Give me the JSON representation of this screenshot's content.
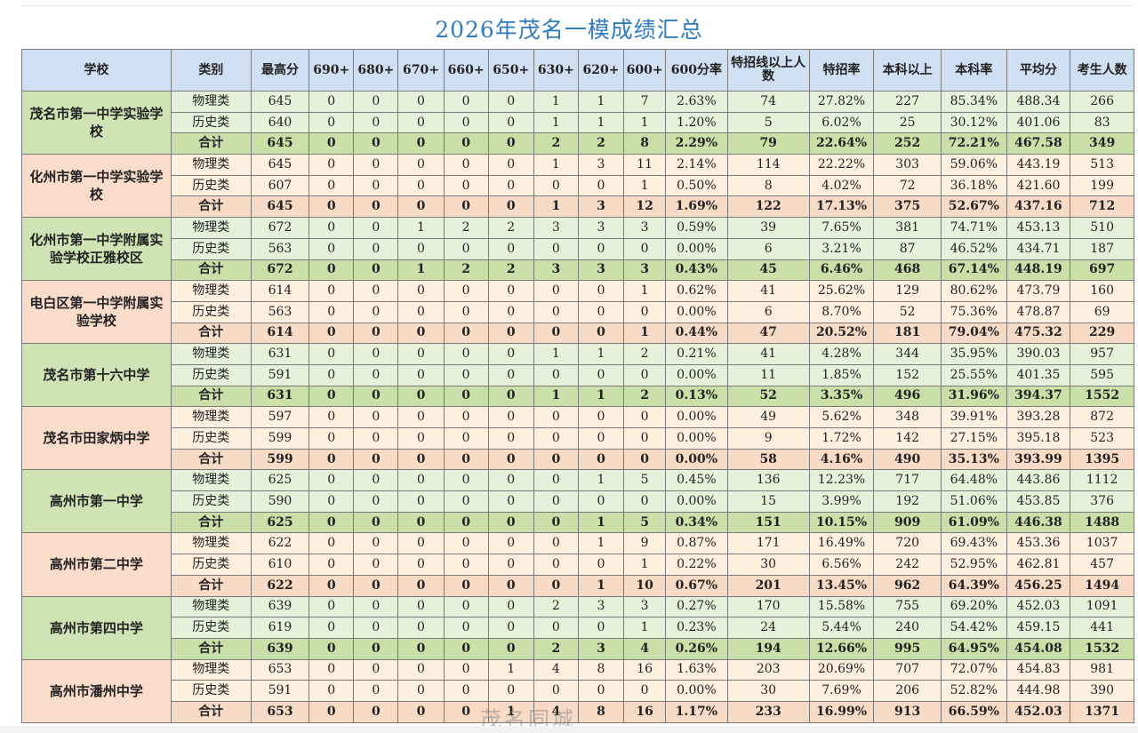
{
  "title": "2026年茂名一模成绩汇总",
  "watermark": "茂名同城",
  "headers": [
    "学校",
    "类别",
    "最高分",
    "690+",
    "680+",
    "670+",
    "660+",
    "650+",
    "630+",
    "620+",
    "600+",
    "600分率",
    "特招线以上人数",
    "特招率",
    "本科以上",
    "本科率",
    "平均分",
    "考生人数"
  ],
  "schools": [
    {
      "name": "茂名市第一中学实验学校",
      "color": "g",
      "rows": [
        [
          "物理类",
          "645",
          "0",
          "0",
          "0",
          "0",
          "0",
          "1",
          "1",
          "7",
          "2.63%",
          "74",
          "27.82%",
          "227",
          "85.34%",
          "488.34",
          "266"
        ],
        [
          "历史类",
          "640",
          "0",
          "0",
          "0",
          "0",
          "0",
          "1",
          "1",
          "1",
          "1.20%",
          "5",
          "6.02%",
          "25",
          "30.12%",
          "401.06",
          "83"
        ],
        [
          "合计",
          "645",
          "0",
          "0",
          "0",
          "0",
          "0",
          "2",
          "2",
          "8",
          "2.29%",
          "79",
          "22.64%",
          "252",
          "72.21%",
          "467.58",
          "349"
        ]
      ]
    },
    {
      "name": "化州市第一中学实验学校",
      "color": "o",
      "rows": [
        [
          "物理类",
          "645",
          "0",
          "0",
          "0",
          "0",
          "0",
          "1",
          "3",
          "11",
          "2.14%",
          "114",
          "22.22%",
          "303",
          "59.06%",
          "443.19",
          "513"
        ],
        [
          "历史类",
          "607",
          "0",
          "0",
          "0",
          "0",
          "0",
          "0",
          "0",
          "1",
          "0.50%",
          "8",
          "4.02%",
          "72",
          "36.18%",
          "421.60",
          "199"
        ],
        [
          "合计",
          "645",
          "0",
          "0",
          "0",
          "0",
          "0",
          "1",
          "3",
          "12",
          "1.69%",
          "122",
          "17.13%",
          "375",
          "52.67%",
          "437.16",
          "712"
        ]
      ]
    },
    {
      "name": "化州市第一中学附属实验学校正雅校区",
      "color": "g",
      "rows": [
        [
          "物理类",
          "672",
          "0",
          "0",
          "1",
          "2",
          "2",
          "3",
          "3",
          "3",
          "0.59%",
          "39",
          "7.65%",
          "381",
          "74.71%",
          "453.13",
          "510"
        ],
        [
          "历史类",
          "563",
          "0",
          "0",
          "0",
          "0",
          "0",
          "0",
          "0",
          "0",
          "0.00%",
          "6",
          "3.21%",
          "87",
          "46.52%",
          "434.71",
          "187"
        ],
        [
          "合计",
          "672",
          "0",
          "0",
          "1",
          "2",
          "2",
          "3",
          "3",
          "3",
          "0.43%",
          "45",
          "6.46%",
          "468",
          "67.14%",
          "448.19",
          "697"
        ]
      ]
    },
    {
      "name": "电白区第一中学附属实验学校",
      "color": "o",
      "rows": [
        [
          "物理类",
          "614",
          "0",
          "0",
          "0",
          "0",
          "0",
          "0",
          "0",
          "1",
          "0.62%",
          "41",
          "25.62%",
          "129",
          "80.62%",
          "473.79",
          "160"
        ],
        [
          "历史类",
          "563",
          "0",
          "0",
          "0",
          "0",
          "0",
          "0",
          "0",
          "0",
          "0.00%",
          "6",
          "8.70%",
          "52",
          "75.36%",
          "478.87",
          "69"
        ],
        [
          "合计",
          "614",
          "0",
          "0",
          "0",
          "0",
          "0",
          "0",
          "0",
          "1",
          "0.44%",
          "47",
          "20.52%",
          "181",
          "79.04%",
          "475.32",
          "229"
        ]
      ]
    },
    {
      "name": "茂名市第十六中学",
      "color": "g",
      "rows": [
        [
          "物理类",
          "631",
          "0",
          "0",
          "0",
          "0",
          "0",
          "1",
          "1",
          "2",
          "0.21%",
          "41",
          "4.28%",
          "344",
          "35.95%",
          "390.03",
          "957"
        ],
        [
          "历史类",
          "591",
          "0",
          "0",
          "0",
          "0",
          "0",
          "0",
          "0",
          "0",
          "0.00%",
          "11",
          "1.85%",
          "152",
          "25.55%",
          "401.35",
          "595"
        ],
        [
          "合计",
          "631",
          "0",
          "0",
          "0",
          "0",
          "0",
          "1",
          "1",
          "2",
          "0.13%",
          "52",
          "3.35%",
          "496",
          "31.96%",
          "394.37",
          "1552"
        ]
      ]
    },
    {
      "name": "茂名市田家炳中学",
      "color": "o",
      "rows": [
        [
          "物理类",
          "597",
          "0",
          "0",
          "0",
          "0",
          "0",
          "0",
          "0",
          "0",
          "0.00%",
          "49",
          "5.62%",
          "348",
          "39.91%",
          "393.28",
          "872"
        ],
        [
          "历史类",
          "599",
          "0",
          "0",
          "0",
          "0",
          "0",
          "0",
          "0",
          "0",
          "0.00%",
          "9",
          "1.72%",
          "142",
          "27.15%",
          "395.18",
          "523"
        ],
        [
          "合计",
          "599",
          "0",
          "0",
          "0",
          "0",
          "0",
          "0",
          "0",
          "0",
          "0.00%",
          "58",
          "4.16%",
          "490",
          "35.13%",
          "393.99",
          "1395"
        ]
      ]
    },
    {
      "name": "高州市第一中学",
      "color": "g",
      "rows": [
        [
          "物理类",
          "625",
          "0",
          "0",
          "0",
          "0",
          "0",
          "0",
          "1",
          "5",
          "0.45%",
          "136",
          "12.23%",
          "717",
          "64.48%",
          "443.86",
          "1112"
        ],
        [
          "历史类",
          "590",
          "0",
          "0",
          "0",
          "0",
          "0",
          "0",
          "0",
          "0",
          "0.00%",
          "15",
          "3.99%",
          "192",
          "51.06%",
          "453.85",
          "376"
        ],
        [
          "合计",
          "625",
          "0",
          "0",
          "0",
          "0",
          "0",
          "0",
          "1",
          "5",
          "0.34%",
          "151",
          "10.15%",
          "909",
          "61.09%",
          "446.38",
          "1488"
        ]
      ]
    },
    {
      "name": "高州市第二中学",
      "color": "o",
      "rows": [
        [
          "物理类",
          "622",
          "0",
          "0",
          "0",
          "0",
          "0",
          "0",
          "1",
          "9",
          "0.87%",
          "171",
          "16.49%",
          "720",
          "69.43%",
          "453.36",
          "1037"
        ],
        [
          "历史类",
          "610",
          "0",
          "0",
          "0",
          "0",
          "0",
          "0",
          "0",
          "1",
          "0.22%",
          "30",
          "6.56%",
          "242",
          "52.95%",
          "462.81",
          "457"
        ],
        [
          "合计",
          "622",
          "0",
          "0",
          "0",
          "0",
          "0",
          "0",
          "1",
          "10",
          "0.67%",
          "201",
          "13.45%",
          "962",
          "64.39%",
          "456.25",
          "1494"
        ]
      ]
    },
    {
      "name": "高州市第四中学",
      "color": "g",
      "rows": [
        [
          "物理类",
          "639",
          "0",
          "0",
          "0",
          "0",
          "0",
          "2",
          "3",
          "3",
          "0.27%",
          "170",
          "15.58%",
          "755",
          "69.20%",
          "452.03",
          "1091"
        ],
        [
          "历史类",
          "619",
          "0",
          "0",
          "0",
          "0",
          "0",
          "0",
          "0",
          "1",
          "0.23%",
          "24",
          "5.44%",
          "240",
          "54.42%",
          "459.15",
          "441"
        ],
        [
          "合计",
          "639",
          "0",
          "0",
          "0",
          "0",
          "0",
          "2",
          "3",
          "4",
          "0.26%",
          "194",
          "12.66%",
          "995",
          "64.95%",
          "454.08",
          "1532"
        ]
      ]
    },
    {
      "name": "高州市潘州中学",
      "color": "o",
      "rows": [
        [
          "物理类",
          "653",
          "0",
          "0",
          "0",
          "0",
          "1",
          "4",
          "8",
          "16",
          "1.63%",
          "203",
          "20.69%",
          "707",
          "72.07%",
          "454.83",
          "981"
        ],
        [
          "历史类",
          "591",
          "0",
          "0",
          "0",
          "0",
          "0",
          "0",
          "0",
          "0",
          "0.00%",
          "30",
          "7.69%",
          "206",
          "52.82%",
          "444.98",
          "390"
        ],
        [
          "合计",
          "653",
          "0",
          "0",
          "0",
          "0",
          "1",
          "4",
          "8",
          "16",
          "1.17%",
          "233",
          "16.99%",
          "913",
          "66.59%",
          "452.03",
          "1371"
        ]
      ]
    }
  ]
}
